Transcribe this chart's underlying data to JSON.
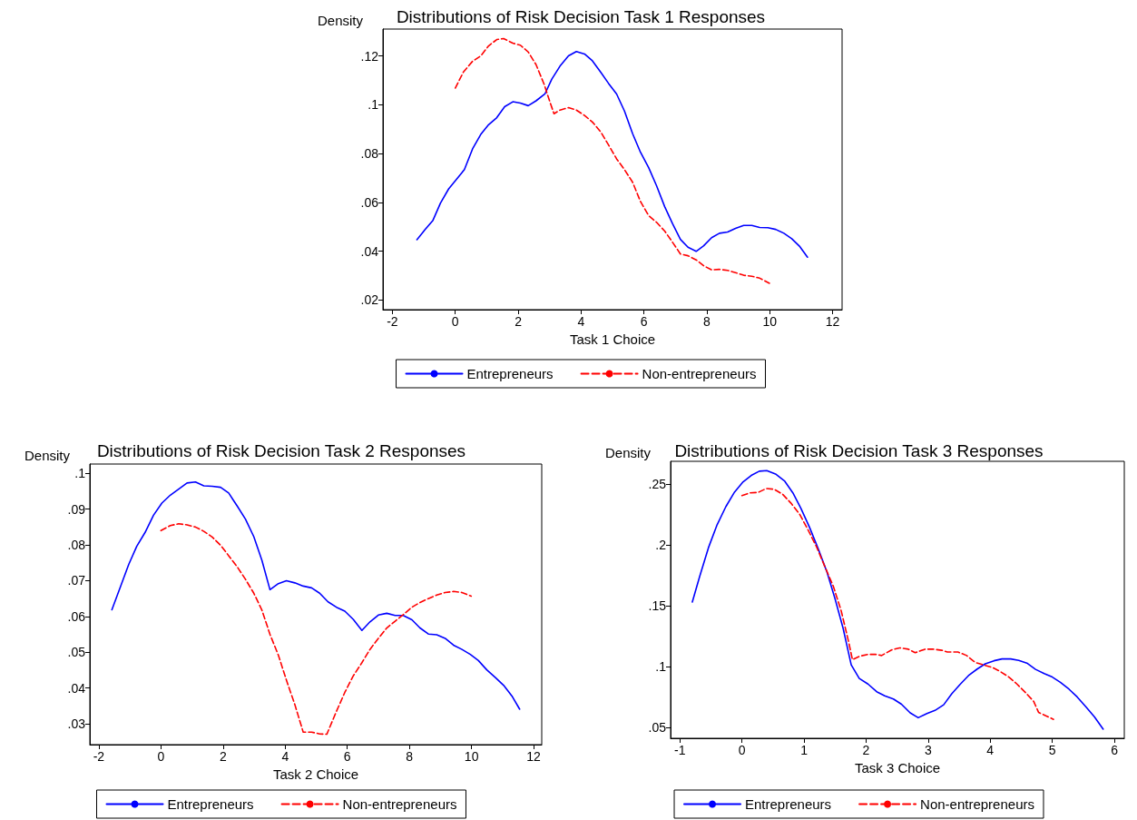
{
  "chart_data": [
    {
      "type": "line",
      "title": "Distributions of Risk Decision Task 1 Responses",
      "xlabel": "Task 1 Choice",
      "ylabel": "Density",
      "xlim": [
        -2.3,
        12.3
      ],
      "ylim": [
        0.016,
        0.131
      ],
      "xticks": [
        -2,
        0,
        2,
        4,
        6,
        8,
        10,
        12
      ],
      "yticks": [
        {
          "value": 0.02,
          "label": ".02"
        },
        {
          "value": 0.04,
          "label": ".04"
        },
        {
          "value": 0.06,
          "label": ".06"
        },
        {
          "value": 0.08,
          "label": ".08"
        },
        {
          "value": 0.1,
          "label": ".1"
        },
        {
          "value": 0.12,
          "label": ".12"
        }
      ],
      "grid": false,
      "legend": "bottom",
      "marker": "none",
      "series": [
        {
          "name": "Entrepreneurs",
          "color": "#0000ff",
          "line_style": "solid",
          "x": [
            -1.22,
            -0.96,
            -0.71,
            -0.47,
            -0.21,
            0.29,
            0.55,
            0.81,
            1.06,
            1.32,
            1.57,
            1.83,
            2.07,
            2.32,
            2.57,
            2.85,
            3.07,
            3.33,
            3.6,
            3.85,
            4.11,
            4.36,
            4.63,
            4.87,
            5.13,
            5.38,
            5.64,
            5.89,
            6.15,
            6.4,
            6.66,
            6.91,
            7.16,
            7.4,
            7.66,
            7.9,
            8.15,
            8.4,
            8.66,
            8.91,
            9.17,
            9.43,
            9.68,
            9.94,
            10.19,
            10.45,
            10.7,
            10.96,
            11.2
          ],
          "values": [
            0.0447,
            0.0488,
            0.0526,
            0.0597,
            0.0655,
            0.0734,
            0.0819,
            0.0878,
            0.0918,
            0.0947,
            0.0992,
            0.1012,
            0.1007,
            0.0996,
            0.1016,
            0.1044,
            0.1105,
            0.1158,
            0.12,
            0.1218,
            0.1208,
            0.118,
            0.1132,
            0.1088,
            0.1044,
            0.0974,
            0.0881,
            0.0805,
            0.0742,
            0.0668,
            0.0582,
            0.0512,
            0.0448,
            0.0416,
            0.0399,
            0.0422,
            0.0455,
            0.0473,
            0.0478,
            0.0493,
            0.0505,
            0.0505,
            0.0497,
            0.0496,
            0.0489,
            0.0473,
            0.0451,
            0.0418,
            0.0375
          ]
        },
        {
          "name": "Non-entrepreneurs",
          "color": "#ff0000",
          "line_style": "dashed",
          "x": [
            0,
            0.26,
            0.55,
            0.81,
            1.06,
            1.32,
            1.54,
            1.83,
            2.07,
            2.32,
            2.57,
            2.83,
            3.01,
            3.14,
            3.33,
            3.6,
            3.85,
            4.11,
            4.36,
            4.63,
            4.87,
            5.13,
            5.38,
            5.64,
            5.89,
            6.15,
            6.4,
            6.66,
            6.91,
            7.16,
            7.4,
            7.66,
            7.9,
            8.15,
            8.4,
            8.66,
            8.91,
            9.17,
            9.43,
            9.68,
            9.99
          ],
          "values": [
            0.1068,
            0.1134,
            0.1178,
            0.12,
            0.1241,
            0.1267,
            0.1271,
            0.1252,
            0.1244,
            0.1216,
            0.1164,
            0.1082,
            0.1011,
            0.0963,
            0.0978,
            0.0988,
            0.0978,
            0.0956,
            0.0929,
            0.0888,
            0.0836,
            0.0778,
            0.0734,
            0.0682,
            0.0603,
            0.0545,
            0.0518,
            0.0482,
            0.0436,
            0.0388,
            0.0381,
            0.0364,
            0.034,
            0.0323,
            0.0325,
            0.0321,
            0.0312,
            0.0301,
            0.0297,
            0.0289,
            0.0268
          ]
        }
      ]
    },
    {
      "type": "line",
      "title": "Distributions of Risk Decision Task 2 Responses",
      "xlabel": "Task 2 Choice",
      "ylabel": "Density",
      "xlim": [
        -2.29,
        12.26
      ],
      "ylim": [
        0.0242,
        0.1026
      ],
      "xticks": [
        -2,
        0,
        2,
        4,
        6,
        8,
        10,
        12
      ],
      "yticks": [
        {
          "value": 0.03,
          "label": ".03"
        },
        {
          "value": 0.04,
          "label": ".04"
        },
        {
          "value": 0.05,
          "label": ".05"
        },
        {
          "value": 0.06,
          "label": ".06"
        },
        {
          "value": 0.07,
          "label": ".07"
        },
        {
          "value": 0.08,
          "label": ".08"
        },
        {
          "value": 0.09,
          "label": ".09"
        },
        {
          "value": 0.1,
          "label": ".1"
        }
      ],
      "grid": false,
      "legend": "bottom",
      "marker": "none",
      "series": [
        {
          "name": "Entrepreneurs",
          "color": "#0000ff",
          "line_style": "solid",
          "x": [
            -1.58,
            -1.3,
            -1.04,
            -0.78,
            -0.51,
            -0.24,
            0.03,
            0.3,
            0.57,
            0.84,
            1.11,
            1.38,
            1.65,
            1.92,
            2.18,
            2.46,
            2.72,
            2.99,
            3.25,
            3.51,
            3.78,
            4.04,
            4.31,
            4.58,
            4.85,
            5.11,
            5.38,
            5.65,
            5.92,
            6.19,
            6.47,
            6.73,
            7.0,
            7.27,
            7.54,
            7.8,
            8.08,
            8.34,
            8.61,
            8.88,
            9.15,
            9.42,
            9.69,
            9.96,
            10.22,
            10.49,
            10.76,
            11.03,
            11.3,
            11.55
          ],
          "values": [
            0.0619,
            0.0684,
            0.0745,
            0.0796,
            0.0835,
            0.0883,
            0.0917,
            0.0939,
            0.0956,
            0.0973,
            0.0976,
            0.0965,
            0.0964,
            0.0961,
            0.0945,
            0.0908,
            0.0872,
            0.0823,
            0.0757,
            0.0675,
            0.0692,
            0.07,
            0.0694,
            0.0685,
            0.068,
            0.0665,
            0.0641,
            0.0626,
            0.0615,
            0.0592,
            0.0561,
            0.0585,
            0.0604,
            0.0609,
            0.0603,
            0.0603,
            0.0591,
            0.0568,
            0.0551,
            0.0549,
            0.0539,
            0.052,
            0.0508,
            0.0494,
            0.0477,
            0.0451,
            0.043,
            0.0408,
            0.0378,
            0.0341
          ]
        },
        {
          "name": "Non-entrepreneurs",
          "color": "#ff0000",
          "line_style": "dashed",
          "x": [
            0,
            0.3,
            0.57,
            0.84,
            1.11,
            1.38,
            1.65,
            1.92,
            2.18,
            2.46,
            2.72,
            2.99,
            3.25,
            3.51,
            3.78,
            4.04,
            4.31,
            4.58,
            4.85,
            5.11,
            5.34,
            5.65,
            5.92,
            6.19,
            6.47,
            6.73,
            7.0,
            7.27,
            7.54,
            7.8,
            8.08,
            8.34,
            8.61,
            8.88,
            9.15,
            9.42,
            9.69,
            9.99
          ],
          "values": [
            0.084,
            0.0854,
            0.0859,
            0.0856,
            0.085,
            0.0838,
            0.0822,
            0.0799,
            0.077,
            0.0738,
            0.0704,
            0.0665,
            0.0618,
            0.055,
            0.0492,
            0.0422,
            0.0354,
            0.0277,
            0.0277,
            0.0272,
            0.0271,
            0.0335,
            0.0388,
            0.0434,
            0.0471,
            0.0508,
            0.0539,
            0.0568,
            0.0587,
            0.0605,
            0.0626,
            0.0639,
            0.065,
            0.066,
            0.0667,
            0.067,
            0.0667,
            0.0657
          ]
        }
      ]
    },
    {
      "type": "line",
      "title": "Distributions of Risk Decision Task 3 Responses",
      "xlabel": "Task 3 Choice",
      "ylabel": "Density",
      "xlim": [
        -1.15,
        6.16
      ],
      "ylim": [
        0.0414,
        0.269
      ],
      "xticks": [
        -1,
        0,
        1,
        2,
        3,
        4,
        5,
        6
      ],
      "yticks": [
        {
          "value": 0.05,
          "label": ".05"
        },
        {
          "value": 0.1,
          "label": ".1"
        },
        {
          "value": 0.15,
          "label": ".15"
        },
        {
          "value": 0.2,
          "label": ".2"
        },
        {
          "value": 0.25,
          "label": ".25"
        }
      ],
      "grid": false,
      "legend": "bottom",
      "marker": "none",
      "series": [
        {
          "name": "Entrepreneurs",
          "color": "#0000ff",
          "line_style": "solid",
          "x": [
            -0.8,
            -0.68,
            -0.54,
            -0.4,
            -0.26,
            -0.12,
            0.01,
            0.15,
            0.28,
            0.4,
            0.54,
            0.69,
            0.82,
            0.95,
            1.09,
            1.23,
            1.37,
            1.5,
            1.63,
            1.76,
            1.89,
            2.03,
            2.17,
            2.3,
            2.44,
            2.57,
            2.71,
            2.84,
            2.98,
            3.11,
            3.25,
            3.38,
            3.52,
            3.65,
            3.79,
            3.92,
            4.06,
            4.19,
            4.33,
            4.46,
            4.6,
            4.73,
            4.87,
            5.0,
            5.13,
            5.27,
            5.4,
            5.54,
            5.68,
            5.82
          ],
          "values": [
            0.1534,
            0.1746,
            0.198,
            0.2169,
            0.2317,
            0.2437,
            0.2517,
            0.2574,
            0.2609,
            0.2614,
            0.2586,
            0.2526,
            0.2431,
            0.2303,
            0.2146,
            0.1969,
            0.178,
            0.156,
            0.1317,
            0.1017,
            0.0906,
            0.086,
            0.0797,
            0.0763,
            0.0737,
            0.0694,
            0.0623,
            0.0583,
            0.0617,
            0.0643,
            0.0689,
            0.078,
            0.086,
            0.0929,
            0.0983,
            0.1026,
            0.1051,
            0.1066,
            0.1066,
            0.1054,
            0.1029,
            0.098,
            0.0946,
            0.0917,
            0.0874,
            0.0817,
            0.0754,
            0.0674,
            0.0589,
            0.0489
          ]
        },
        {
          "name": "Non-entrepreneurs",
          "color": "#ff0000",
          "line_style": "dashed",
          "x": [
            0,
            0.13,
            0.26,
            0.39,
            0.52,
            0.66,
            0.79,
            0.93,
            1.06,
            1.2,
            1.33,
            1.47,
            1.6,
            1.72,
            1.78,
            1.9,
            2.03,
            2.16,
            2.25,
            2.41,
            2.54,
            2.68,
            2.79,
            2.95,
            3.08,
            3.22,
            3.31,
            3.48,
            3.62,
            3.76,
            3.89,
            4.03,
            4.16,
            4.3,
            4.43,
            4.57,
            4.7,
            4.78,
            4.88,
            5.02
          ],
          "values": [
            0.2409,
            0.2431,
            0.2434,
            0.2466,
            0.246,
            0.2417,
            0.2346,
            0.2254,
            0.2131,
            0.1989,
            0.1831,
            0.1666,
            0.1459,
            0.1203,
            0.106,
            0.1089,
            0.1103,
            0.1103,
            0.1094,
            0.114,
            0.1157,
            0.1146,
            0.1117,
            0.1146,
            0.1146,
            0.1137,
            0.1123,
            0.1123,
            0.1094,
            0.1037,
            0.1017,
            0.0997,
            0.0963,
            0.0917,
            0.086,
            0.0789,
            0.0717,
            0.0626,
            0.0603,
            0.0569
          ]
        }
      ]
    }
  ]
}
